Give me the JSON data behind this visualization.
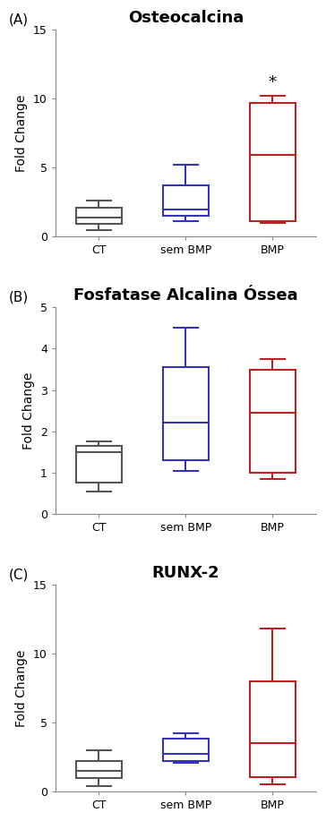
{
  "panels": [
    {
      "label": "(A)",
      "title": "Osteocalcina",
      "title_bold": true,
      "ylabel": "Fold Change",
      "ylim": [
        0,
        15
      ],
      "yticks": [
        0,
        5,
        10,
        15
      ],
      "groups": [
        "CT",
        "sem BMP",
        "BMP"
      ],
      "colors": [
        "#555555",
        "#3333bb",
        "#bb2222"
      ],
      "boxes": [
        {
          "q1": 0.9,
          "median": 1.35,
          "q3": 2.1,
          "whislo": 0.5,
          "whishi": 2.6
        },
        {
          "q1": 1.5,
          "median": 1.95,
          "q3": 3.7,
          "whislo": 1.1,
          "whishi": 5.2
        },
        {
          "q1": 1.1,
          "median": 5.9,
          "q3": 9.7,
          "whislo": 1.0,
          "whishi": 10.2
        }
      ],
      "significance": {
        "group_idx": 2,
        "symbol": "*",
        "y": 10.6
      }
    },
    {
      "label": "(B)",
      "title": "Fosfatase Alcalina Óssea",
      "title_bold": true,
      "ylabel": "Fold Change",
      "ylim": [
        0,
        5
      ],
      "yticks": [
        0,
        1,
        2,
        3,
        4,
        5
      ],
      "groups": [
        "CT",
        "sem BMP",
        "BMP"
      ],
      "colors": [
        "#555555",
        "#3333bb",
        "#bb2222"
      ],
      "boxes": [
        {
          "q1": 0.75,
          "median": 1.5,
          "q3": 1.65,
          "whislo": 0.55,
          "whishi": 1.75
        },
        {
          "q1": 1.3,
          "median": 2.2,
          "q3": 3.55,
          "whislo": 1.05,
          "whishi": 4.5
        },
        {
          "q1": 1.0,
          "median": 2.45,
          "q3": 3.5,
          "whislo": 0.85,
          "whishi": 3.75
        }
      ],
      "significance": null
    },
    {
      "label": "(C)",
      "title": "RUNX-2",
      "title_bold": true,
      "ylabel": "Fold Change",
      "ylim": [
        0,
        15
      ],
      "yticks": [
        0,
        5,
        10,
        15
      ],
      "groups": [
        "CT",
        "sem BMP",
        "BMP"
      ],
      "colors": [
        "#555555",
        "#3333bb",
        "#bb2222"
      ],
      "boxes": [
        {
          "q1": 0.95,
          "median": 1.5,
          "q3": 2.2,
          "whislo": 0.4,
          "whishi": 3.0
        },
        {
          "q1": 2.2,
          "median": 2.7,
          "q3": 3.8,
          "whislo": 2.05,
          "whishi": 4.2
        },
        {
          "q1": 1.0,
          "median": 3.5,
          "q3": 8.0,
          "whislo": 0.5,
          "whishi": 11.8
        }
      ],
      "significance": null
    }
  ],
  "background_color": "#ffffff",
  "linewidth": 1.5,
  "box_width": 0.52,
  "whisker_linewidth": 1.5,
  "cap_linewidth": 1.5,
  "median_linewidth": 1.5,
  "label_fontsize": 11,
  "title_fontsize": 13,
  "tick_fontsize": 9,
  "ylabel_fontsize": 10
}
